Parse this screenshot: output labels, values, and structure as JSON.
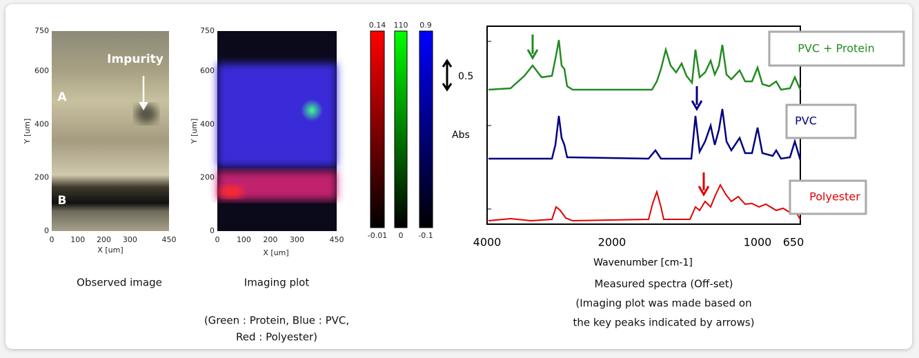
{
  "observed": {
    "yticks": [
      0,
      200,
      400,
      600,
      750
    ],
    "xticks": [
      0,
      100,
      200,
      300,
      450
    ],
    "ylabel": "Y [um]",
    "xlabel": "X [um]",
    "impurity": "Impurity",
    "region_a": "A",
    "region_b": "B",
    "caption": "Observed image"
  },
  "imaging": {
    "yticks": [
      0,
      200,
      400,
      600,
      750
    ],
    "xticks": [
      0,
      100,
      200,
      300,
      450
    ],
    "ylabel": "Y [um]",
    "xlabel": "X [um]",
    "caption": "Imaging plot",
    "note": [
      "(Green : Protein, Blue : PVC,",
      "Red : Polyester)"
    ]
  },
  "colorbars": [
    {
      "max": 0.14,
      "min": -0.01
    },
    {
      "max": 110,
      "min": 0
    },
    {
      "max": 0.9,
      "min": -0.1
    }
  ],
  "spectra": {
    "xticks": [
      4000,
      2000,
      1000,
      650
    ],
    "xlabel": "Wavenumber [cm-1]",
    "scale": 0.5,
    "ylabel": "Abs",
    "legend": [
      "PVC + Protein",
      "PVC",
      "Polyester"
    ],
    "caption": [
      "Measured spectra (Off-set)",
      "(Imaging plot was made based on",
      "the key peaks indicated by arrows)"
    ]
  }
}
